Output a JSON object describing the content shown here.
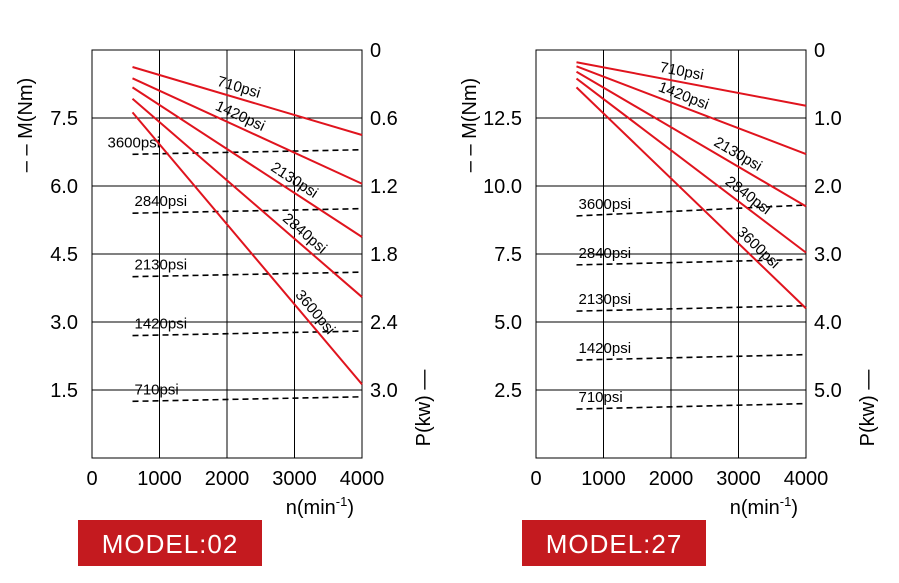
{
  "chart_data": [
    {
      "type": "line",
      "title": "MODEL:02",
      "xlabel": "n(min-1)",
      "xlabel_main": "n(min",
      "xlabel_sup": "-1",
      "xlabel_close": ")",
      "ylabel_left": "– – M(Nm)",
      "ylabel_right": "P(kw) —",
      "xlim": [
        0,
        4000
      ],
      "x_ticks": [
        "0",
        "1000",
        "2000",
        "3000",
        "4000"
      ],
      "ylim_left": [
        0,
        9
      ],
      "left_ticks": [
        "1.5",
        "3.0",
        "4.5",
        "6.0",
        "7.5"
      ],
      "left_tick_values": [
        1.5,
        3.0,
        4.5,
        6.0,
        7.5
      ],
      "ylim_right": [
        3.6,
        0
      ],
      "right_ticks": [
        "0",
        "0.6",
        "1.2",
        "1.8",
        "2.4",
        "3.0"
      ],
      "right_tick_values": [
        0,
        0.6,
        1.2,
        1.8,
        2.4,
        3.0
      ],
      "power_series": [
        {
          "name": "710psi",
          "x": [
            600,
            4000
          ],
          "y": [
            0.15,
            0.75
          ]
        },
        {
          "name": "1420psi",
          "x": [
            600,
            4000
          ],
          "y": [
            0.25,
            1.18
          ]
        },
        {
          "name": "2130psi",
          "x": [
            600,
            4000
          ],
          "y": [
            0.33,
            1.65
          ]
        },
        {
          "name": "2840psi",
          "x": [
            600,
            4000
          ],
          "y": [
            0.43,
            2.18
          ]
        },
        {
          "name": "3600psi",
          "x": [
            600,
            4000
          ],
          "y": [
            0.55,
            2.95
          ]
        }
      ],
      "torque_series": [
        {
          "name": "3600psi",
          "x": [
            600,
            4000
          ],
          "y": [
            6.7,
            6.8
          ]
        },
        {
          "name": "2840psi",
          "x": [
            600,
            4000
          ],
          "y": [
            5.4,
            5.5
          ]
        },
        {
          "name": "2130psi",
          "x": [
            600,
            4000
          ],
          "y": [
            4.0,
            4.1
          ]
        },
        {
          "name": "1420psi",
          "x": [
            600,
            4000
          ],
          "y": [
            2.7,
            2.8
          ]
        },
        {
          "name": "710psi",
          "x": [
            600,
            4000
          ],
          "y": [
            1.25,
            1.35
          ]
        }
      ]
    },
    {
      "type": "line",
      "title": "MODEL:27",
      "xlabel": "n(min-1)",
      "xlabel_main": "n(min",
      "xlabel_sup": "-1",
      "xlabel_close": ")",
      "ylabel_left": "– – M(Nm)",
      "ylabel_right": "P(kw) —",
      "xlim": [
        0,
        4000
      ],
      "x_ticks": [
        "0",
        "1000",
        "2000",
        "3000",
        "4000"
      ],
      "ylim_left": [
        0,
        15
      ],
      "left_ticks": [
        "2.5",
        "5.0",
        "7.5",
        "10.0",
        "12.5"
      ],
      "left_tick_values": [
        2.5,
        5.0,
        7.5,
        10.0,
        12.5
      ],
      "ylim_right": [
        6,
        0
      ],
      "right_ticks": [
        "0",
        "1.0",
        "2.0",
        "3.0",
        "4.0",
        "5.0"
      ],
      "right_tick_values": [
        0,
        1.0,
        2.0,
        3.0,
        4.0,
        5.0
      ],
      "power_series": [
        {
          "name": "710psi",
          "x": [
            600,
            4000
          ],
          "y": [
            0.18,
            0.82
          ]
        },
        {
          "name": "1420psi",
          "x": [
            600,
            4000
          ],
          "y": [
            0.24,
            1.53
          ]
        },
        {
          "name": "2130psi",
          "x": [
            600,
            4000
          ],
          "y": [
            0.32,
            2.3
          ]
        },
        {
          "name": "2840psi",
          "x": [
            600,
            4000
          ],
          "y": [
            0.42,
            2.98
          ]
        },
        {
          "name": "3600psi",
          "x": [
            600,
            4000
          ],
          "y": [
            0.55,
            3.8
          ]
        }
      ],
      "torque_series": [
        {
          "name": "3600psi",
          "x": [
            600,
            4000
          ],
          "y": [
            8.9,
            9.3
          ]
        },
        {
          "name": "2840psi",
          "x": [
            600,
            4000
          ],
          "y": [
            7.1,
            7.3
          ]
        },
        {
          "name": "2130psi",
          "x": [
            600,
            4000
          ],
          "y": [
            5.4,
            5.6
          ]
        },
        {
          "name": "1420psi",
          "x": [
            600,
            4000
          ],
          "y": [
            3.6,
            3.8
          ]
        },
        {
          "name": "710psi",
          "x": [
            600,
            4000
          ],
          "y": [
            1.8,
            2.0
          ]
        }
      ]
    }
  ]
}
